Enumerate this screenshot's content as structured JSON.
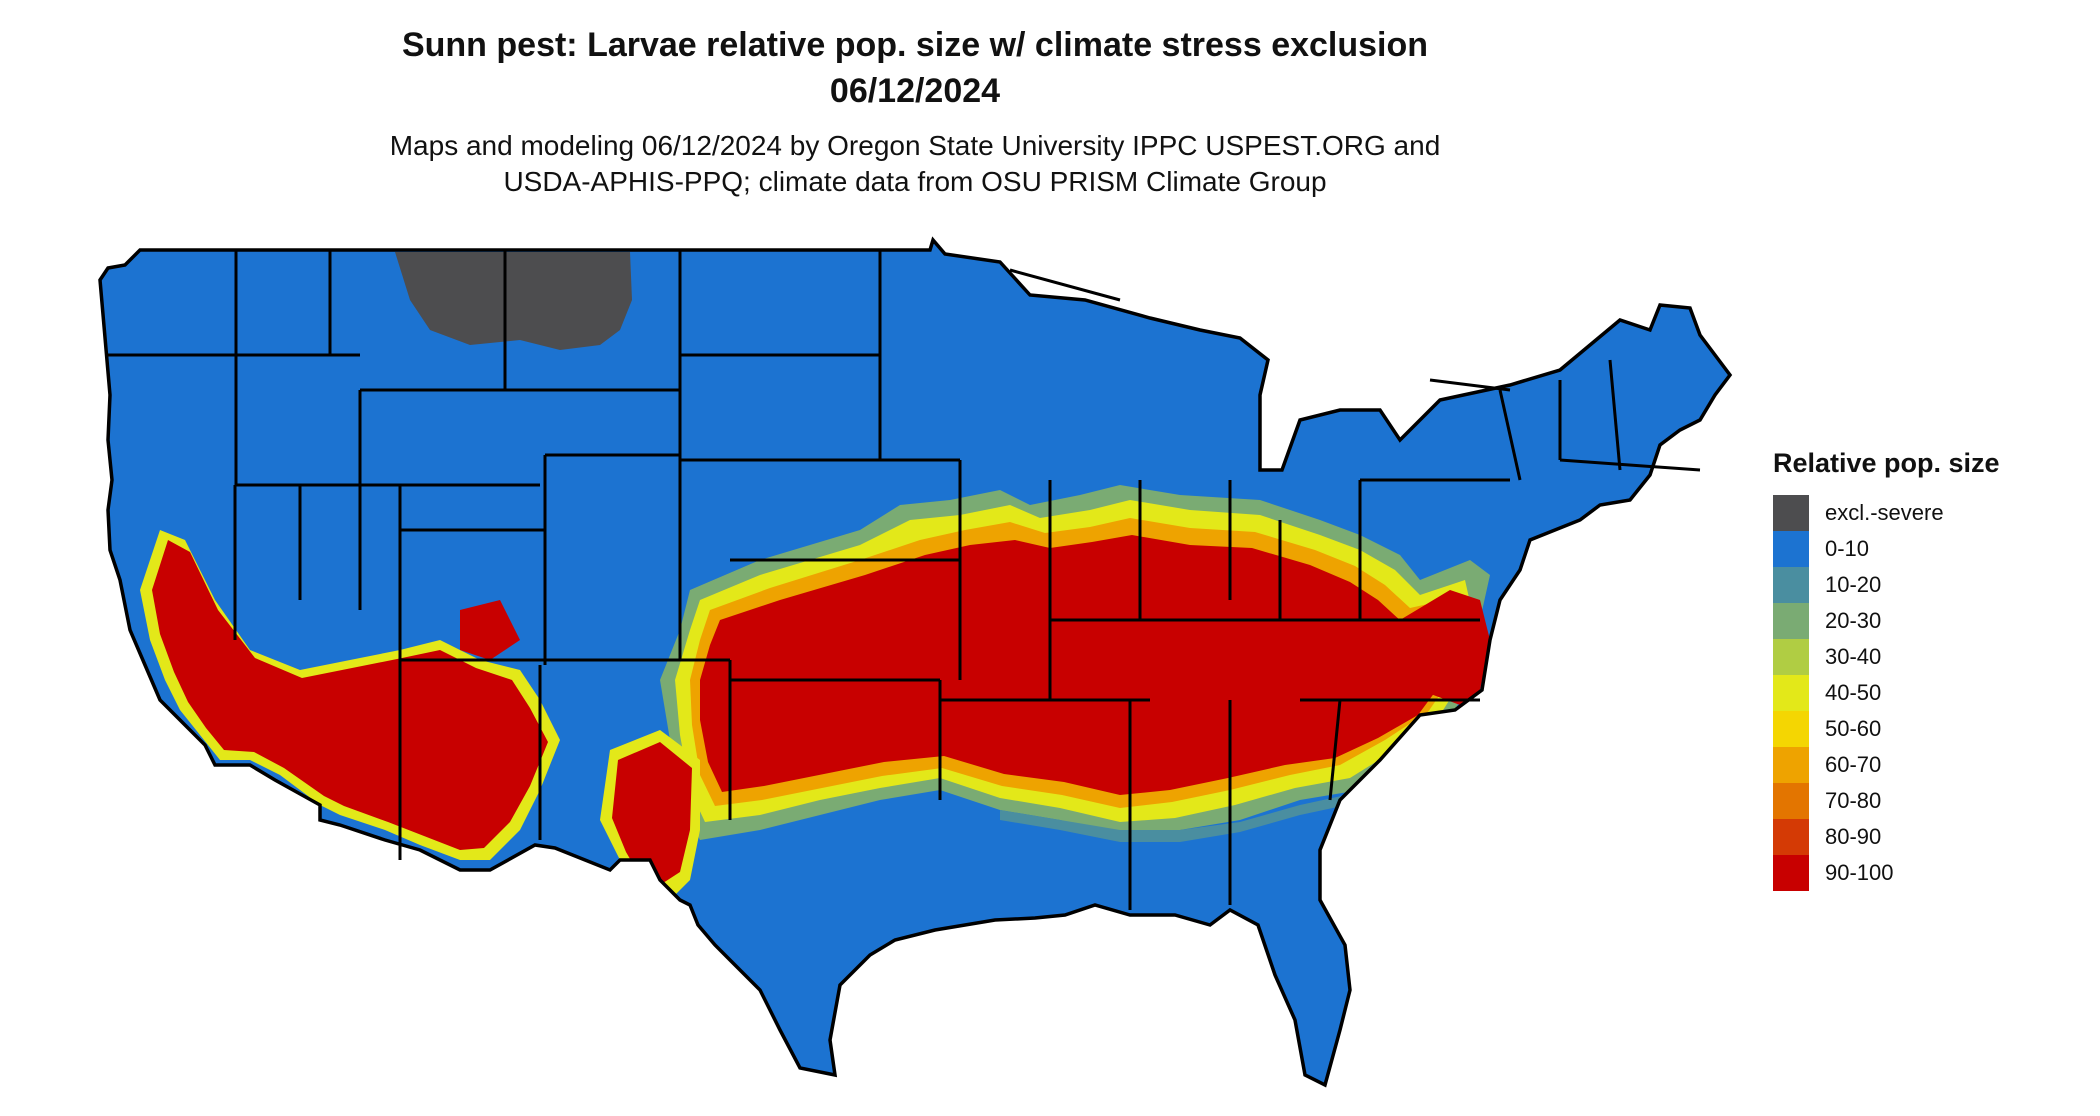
{
  "title": {
    "line1": "Sunn pest: Larvae relative pop. size w/ climate stress exclusion",
    "line2": "06/12/2024"
  },
  "subtitle": {
    "line1": "Maps and modeling 06/12/2024 by Oregon State University IPPC USPEST.ORG and",
    "line2": "USDA-APHIS-PPQ; climate data from OSU PRISM Climate Group"
  },
  "legend": {
    "title": "Relative pop. size",
    "items": [
      {
        "label": "excl.-severe",
        "color": "#4d4d4f"
      },
      {
        "label": "0-10",
        "color": "#1c73d1"
      },
      {
        "label": "10-20",
        "color": "#4a8ea0"
      },
      {
        "label": "20-30",
        "color": "#7aab73"
      },
      {
        "label": "30-40",
        "color": "#b0cd43"
      },
      {
        "label": "40-50",
        "color": "#e3e819"
      },
      {
        "label": "50-60",
        "color": "#f4d602"
      },
      {
        "label": "60-70",
        "color": "#eea300"
      },
      {
        "label": "70-80",
        "color": "#e37500"
      },
      {
        "label": "80-90",
        "color": "#d43a05"
      },
      {
        "label": "90-100",
        "color": "#c80000"
      }
    ]
  }
}
